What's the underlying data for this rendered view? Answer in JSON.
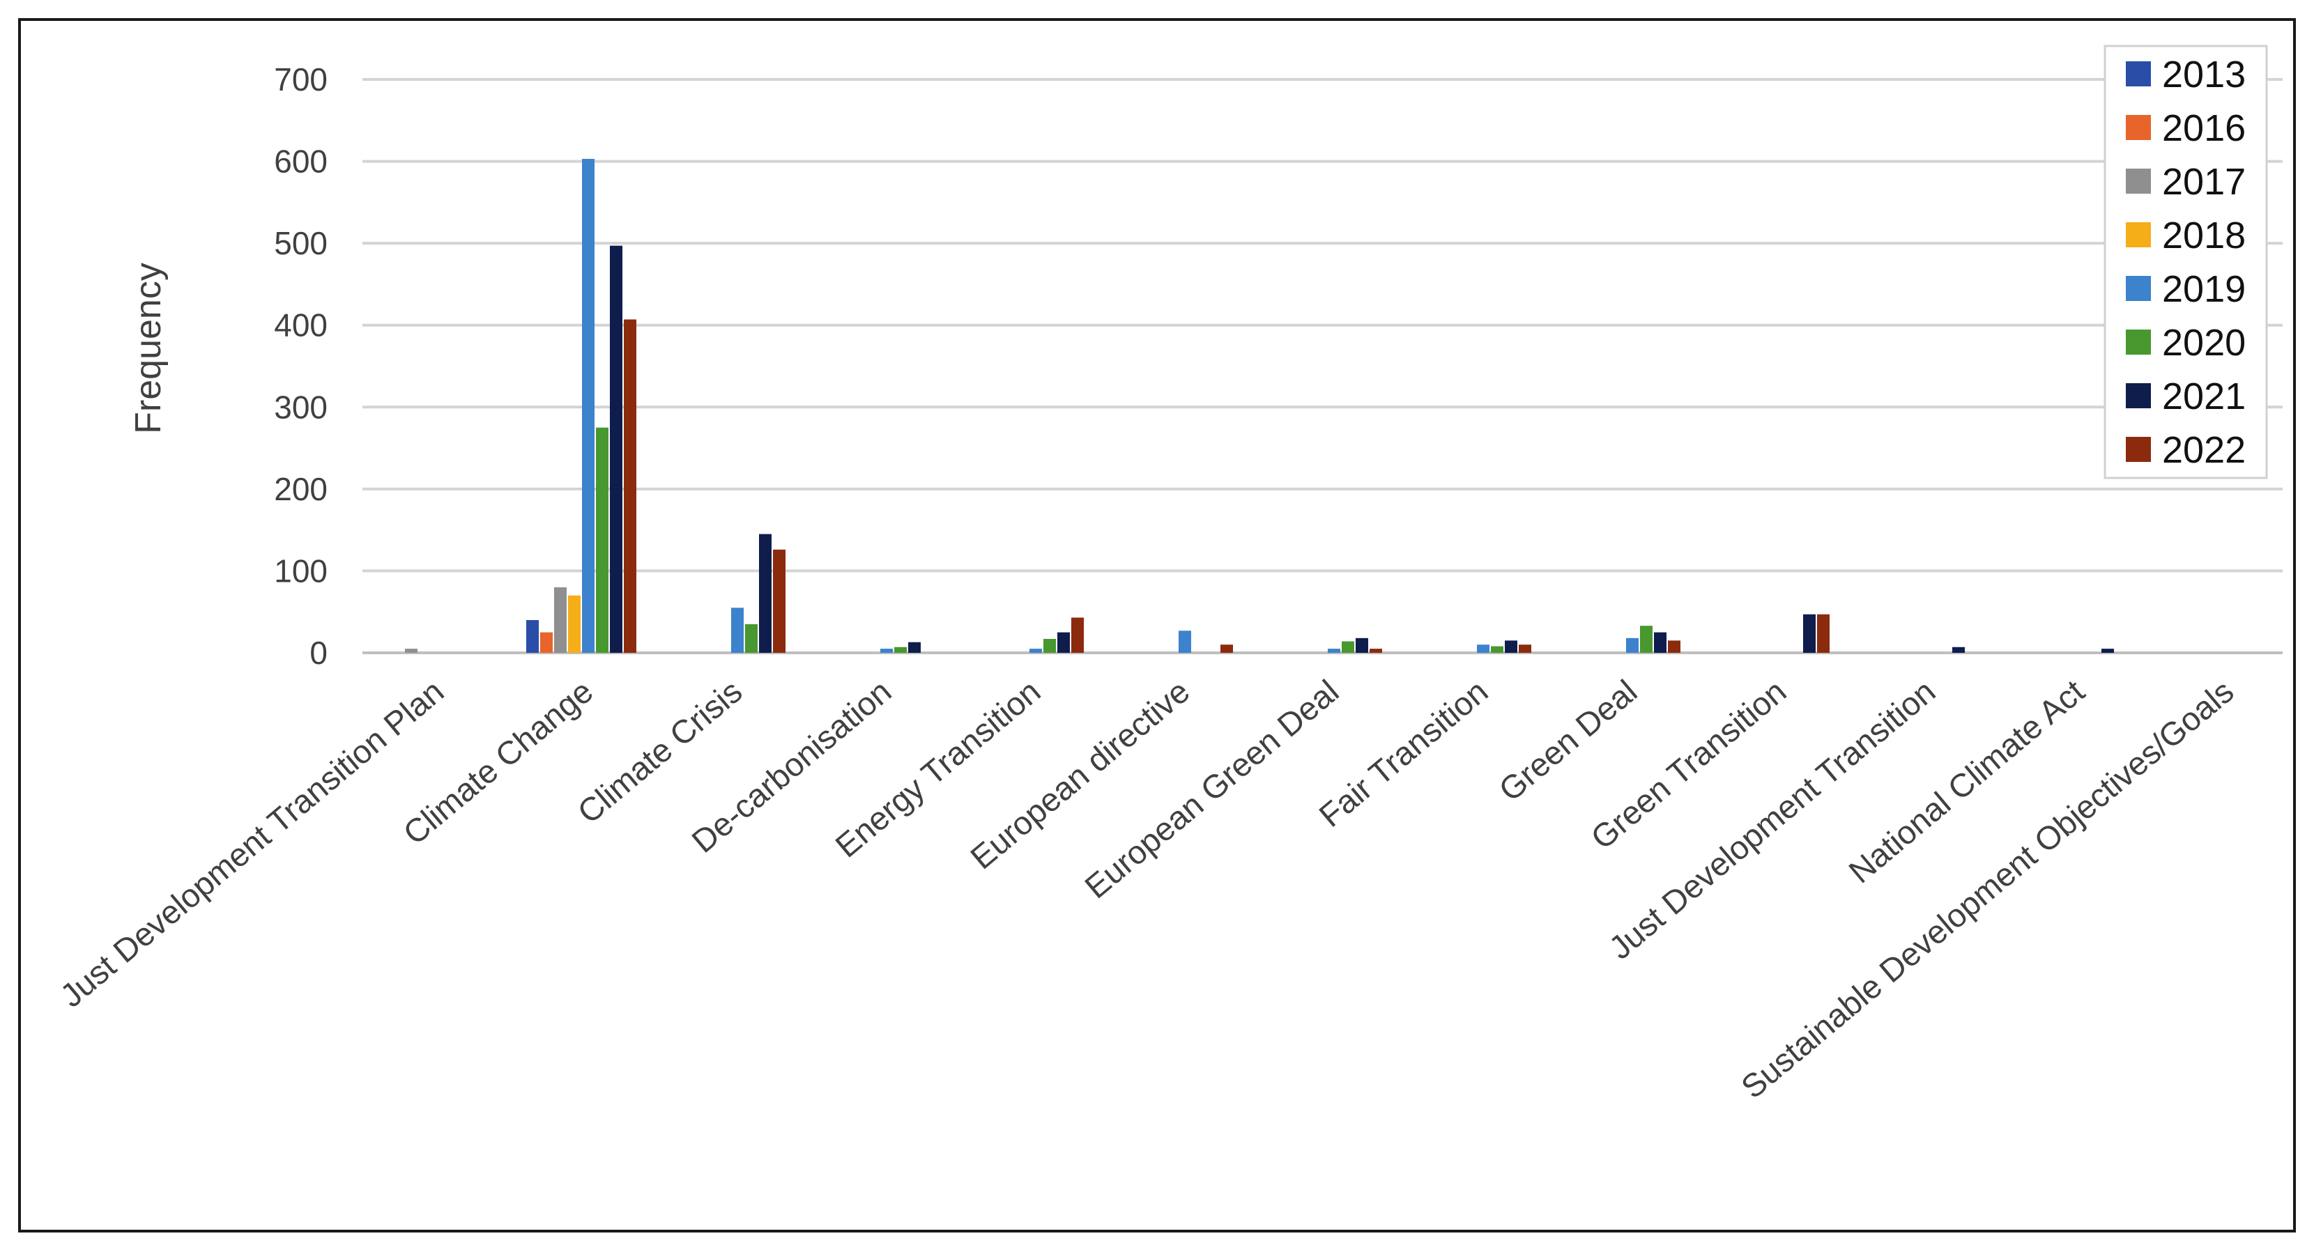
{
  "chart_data": {
    "type": "bar",
    "title": "",
    "xlabel": "",
    "ylabel": "Frequency",
    "ylim": [
      0,
      700
    ],
    "yticks": [
      0,
      100,
      200,
      300,
      400,
      500,
      600,
      700
    ],
    "grid": true,
    "legend_position": "top-right",
    "categories": [
      "Just Development Transition Plan",
      "Climate Change",
      "Climate Crisis",
      "De-carbonisation",
      "Energy Transition",
      "European directive",
      "European Green Deal",
      "Fair Transition",
      "Green Deal",
      "Green Transition",
      "Just Development Transition",
      "National Climate Act",
      "Sustainable Development Objectives/Goals"
    ],
    "series": [
      {
        "name": "2013",
        "color": "#2a4ea8",
        "values": [
          0,
          40,
          0,
          0,
          0,
          0,
          0,
          0,
          0,
          0,
          0,
          0,
          0
        ]
      },
      {
        "name": "2016",
        "color": "#e8642a",
        "values": [
          0,
          25,
          0,
          0,
          0,
          0,
          0,
          0,
          0,
          0,
          0,
          0,
          0
        ]
      },
      {
        "name": "2017",
        "color": "#8f8f8f",
        "values": [
          5,
          80,
          0,
          0,
          0,
          0,
          0,
          0,
          0,
          0,
          0,
          0,
          0
        ]
      },
      {
        "name": "2018",
        "color": "#f5ad18",
        "values": [
          0,
          70,
          0,
          0,
          0,
          0,
          0,
          0,
          0,
          0,
          0,
          0,
          0
        ]
      },
      {
        "name": "2019",
        "color": "#3c82cc",
        "values": [
          0,
          603,
          55,
          5,
          5,
          27,
          5,
          10,
          18,
          0,
          0,
          0,
          0
        ]
      },
      {
        "name": "2020",
        "color": "#47982e",
        "values": [
          0,
          275,
          35,
          7,
          17,
          0,
          14,
          8,
          33,
          0,
          0,
          0,
          0
        ]
      },
      {
        "name": "2021",
        "color": "#0f1d4d",
        "values": [
          0,
          497,
          145,
          13,
          25,
          0,
          18,
          15,
          25,
          47,
          7,
          5,
          0
        ]
      },
      {
        "name": "2022",
        "color": "#8c2a0e",
        "values": [
          0,
          407,
          126,
          0,
          43,
          10,
          5,
          10,
          15,
          47,
          0,
          0,
          0
        ]
      }
    ]
  }
}
